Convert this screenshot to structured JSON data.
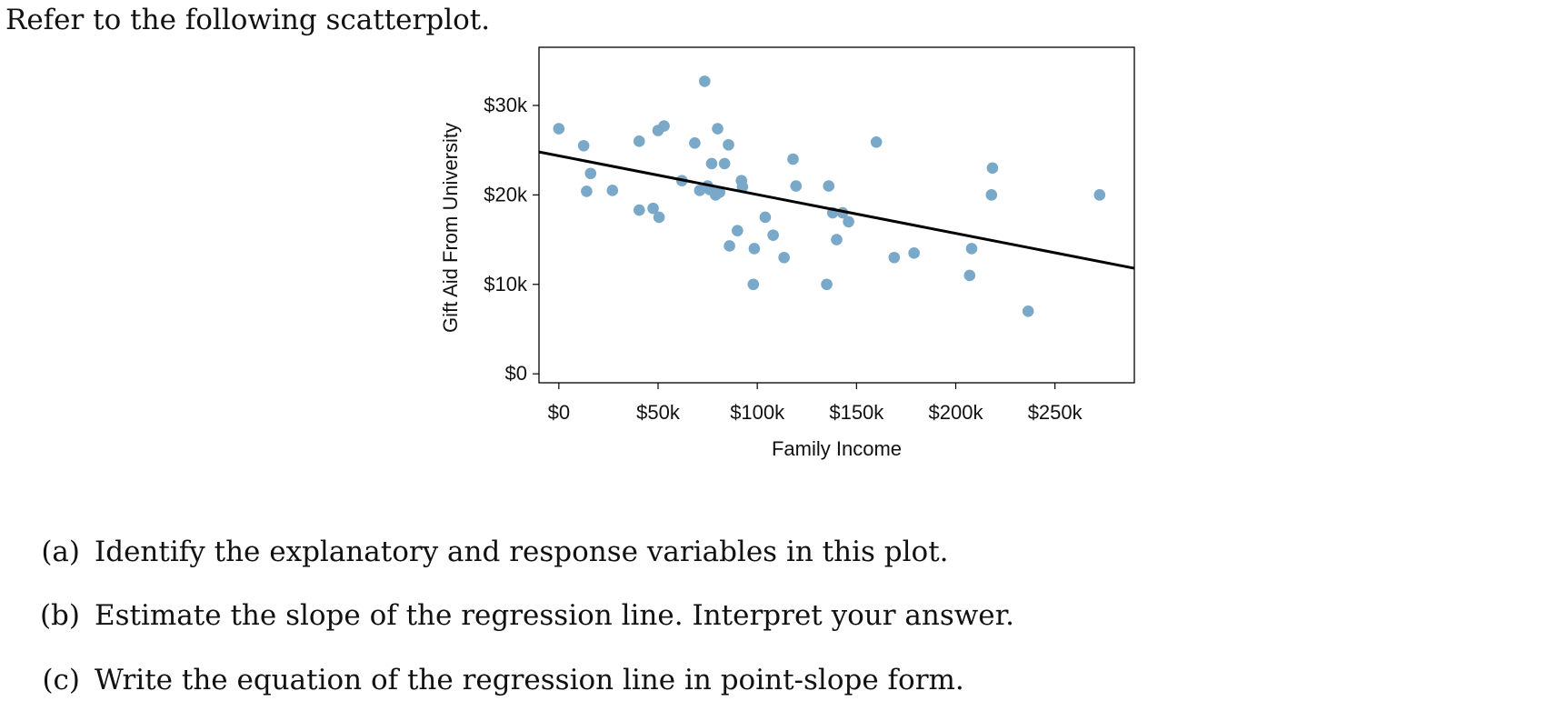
{
  "intro": "Refer to the following scatterplot.",
  "chart_data": {
    "type": "scatter",
    "title": "",
    "xlabel": "Family Income",
    "ylabel": "Gift Aid From University",
    "xlim": [
      -10,
      290
    ],
    "ylim": [
      -1,
      36.5
    ],
    "x_ticks": [
      0,
      50,
      100,
      150,
      200,
      250
    ],
    "x_tick_labels": [
      "$0",
      "$50k",
      "$100k",
      "$150k",
      "$200k",
      "$250k"
    ],
    "y_ticks": [
      0,
      10,
      20,
      30
    ],
    "y_tick_labels": [
      "$0",
      "$10k",
      "$20k",
      "$30k"
    ],
    "grid": false,
    "point_color": "#7aa8c8",
    "line_color": "#000000",
    "regression_line": {
      "x": [
        -10,
        290
      ],
      "y": [
        24.8,
        11.8
      ]
    },
    "x": [
      0,
      12.5,
      14,
      16,
      27,
      40.5,
      40.5,
      47.5,
      50,
      50.5,
      53,
      62,
      68.5,
      71,
      73.5,
      75,
      76,
      77,
      79,
      80,
      81,
      83.5,
      85.5,
      86,
      90,
      92,
      92.5,
      98,
      98.5,
      104,
      108,
      113.5,
      118,
      119.5,
      135,
      136,
      138,
      140,
      143,
      146,
      160,
      169,
      179,
      207,
      208,
      218,
      218.5,
      236.5,
      272.5
    ],
    "y": [
      27.4,
      25.5,
      20.4,
      22.4,
      20.5,
      18.3,
      26,
      18.5,
      27.2,
      17.5,
      27.7,
      21.6,
      25.8,
      20.5,
      32.7,
      21,
      20.6,
      23.5,
      20,
      27.4,
      20.3,
      23.5,
      25.6,
      14.3,
      16,
      21.6,
      20.9,
      10,
      14,
      17.5,
      15.5,
      13,
      24,
      21,
      10,
      21,
      18,
      15,
      18,
      17,
      25.9,
      13,
      13.5,
      11,
      14,
      20,
      23,
      7,
      20
    ]
  },
  "questions": [
    {
      "label": "(a)",
      "text": "Identify the explanatory and response variables in this plot."
    },
    {
      "label": "(b)",
      "text": "Estimate the slope of the regression line. Interpret your answer."
    },
    {
      "label": "(c)",
      "text": "Write the equation of the regression line in point-slope form."
    }
  ]
}
